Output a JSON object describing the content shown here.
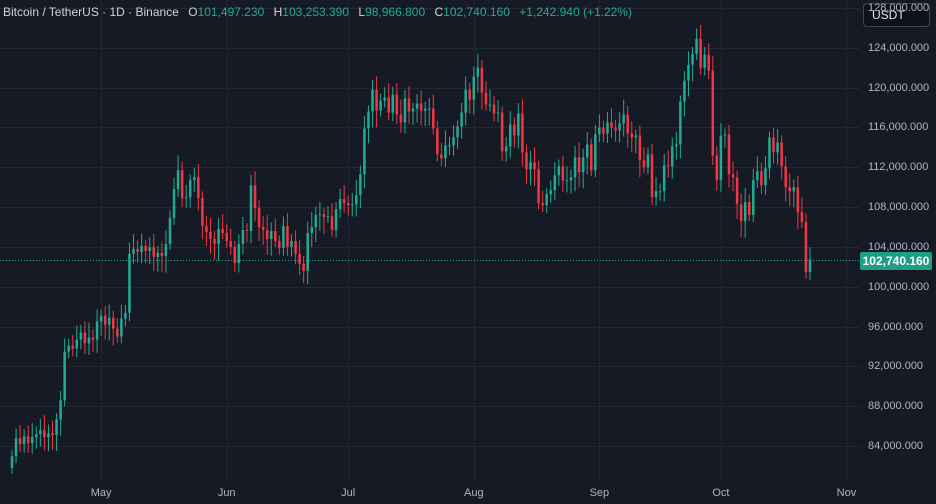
{
  "legend": {
    "symbol": "Bitcoin / TetherUS · 1D · Binance",
    "open_key": "O",
    "open": "101,497.230",
    "high_key": "H",
    "high": "103,253.390",
    "low_key": "L",
    "low": "98,966.800",
    "close_key": "C",
    "close": "102,740.160",
    "change": "+1,242.940 (+1.22%)"
  },
  "currency_button": "USDT",
  "last_price_label": "102,740.160",
  "colors": {
    "background": "#161a25",
    "grid": "#232733",
    "up": "#22ab94",
    "down": "#f23645",
    "price_line": "#22ab94",
    "axis_text": "#b2b5be"
  },
  "chart_data": {
    "type": "candlestick",
    "ylim": [
      80600000,
      128800000
    ],
    "last_price": 102740160,
    "y_ticks": [
      {
        "value": 84000000,
        "label": "84,000.000"
      },
      {
        "value": 88000000,
        "label": "88,000.000"
      },
      {
        "value": 92000000,
        "label": "92,000.000"
      },
      {
        "value": 96000000,
        "label": "96,000.000"
      },
      {
        "value": 100000000,
        "label": "100,000.000"
      },
      {
        "value": 104000000,
        "label": "104,000.000"
      },
      {
        "value": 108000000,
        "label": "108,000.000"
      },
      {
        "value": 112000000,
        "label": "112,000.000"
      },
      {
        "value": 116000000,
        "label": "116,000.000"
      },
      {
        "value": 120000000,
        "label": "120,000.000"
      },
      {
        "value": 124000000,
        "label": "124,000.000"
      },
      {
        "value": 128000000,
        "label": "128,000.000"
      }
    ],
    "x_ticks": [
      {
        "index": 22,
        "label": "May"
      },
      {
        "index": 53,
        "label": "Jun"
      },
      {
        "index": 83,
        "label": "Jul"
      },
      {
        "index": 114,
        "label": "Aug"
      },
      {
        "index": 145,
        "label": "Sep"
      },
      {
        "index": 175,
        "label": "Oct"
      },
      {
        "index": 206,
        "label": "Nov"
      }
    ],
    "closes": [
      83000000,
      84800000,
      84200000,
      85000000,
      84300000,
      84900000,
      85200000,
      85600000,
      84900000,
      85300000,
      85100000,
      86700000,
      88600000,
      93500000,
      94100000,
      93800000,
      94700000,
      95400000,
      94300000,
      94900000,
      94700000,
      96500000,
      97100000,
      96200000,
      96900000,
      95800000,
      95000000,
      96800000,
      97400000,
      103300000,
      103800000,
      103500000,
      104100000,
      103600000,
      104000000,
      103000000,
      103400000,
      103100000,
      104300000,
      106900000,
      109800000,
      111700000,
      108900000,
      109000000,
      110700000,
      111000000,
      108900000,
      106100000,
      105500000,
      104800000,
      104300000,
      105800000,
      105400000,
      104600000,
      104000000,
      102400000,
      104300000,
      105700000,
      105600000,
      110200000,
      107900000,
      106000000,
      105700000,
      104800000,
      105600000,
      104600000,
      103900000,
      106100000,
      104000000,
      104600000,
      103300000,
      102300000,
      101600000,
      105400000,
      106000000,
      107200000,
      107300000,
      107000000,
      107100000,
      105700000,
      107800000,
      108800000,
      108400000,
      108200000,
      108300000,
      109200000,
      111300000,
      115900000,
      117600000,
      119800000,
      117700000,
      118700000,
      119000000,
      117500000,
      119300000,
      117300000,
      116500000,
      118900000,
      117600000,
      117900000,
      118400000,
      117700000,
      117900000,
      117900000,
      115900000,
      113300000,
      112900000,
      114200000,
      114200000,
      115000000,
      116100000,
      117500000,
      119800000,
      118800000,
      121100000,
      122000000,
      119500000,
      118300000,
      118300000,
      117400000,
      117500000,
      113600000,
      114100000,
      116300000,
      115200000,
      117400000,
      113500000,
      111800000,
      112500000,
      111800000,
      108400000,
      108200000,
      109300000,
      109700000,
      111200000,
      112100000,
      110700000,
      110700000,
      111000000,
      113000000,
      111500000,
      113000000,
      114300000,
      111700000,
      115300000,
      116000000,
      115400000,
      116500000,
      116000000,
      115700000,
      116400000,
      117300000,
      115400000,
      115000000,
      115200000,
      112700000,
      112000000,
      113300000,
      109000000,
      109600000,
      109600000,
      112200000,
      112100000,
      114100000,
      114300000,
      118600000,
      120700000,
      122300000,
      123400000,
      124900000,
      122000000,
      123300000,
      121700000,
      113200000,
      110700000,
      115200000,
      115300000,
      111300000,
      111000000,
      108300000,
      106600000,
      108500000,
      107200000,
      110700000,
      111600000,
      110200000,
      111900000,
      115000000,
      113500000,
      114500000,
      112100000,
      110000000,
      109600000,
      110000000,
      107500000,
      106500000,
      101500000,
      102740160
    ]
  }
}
